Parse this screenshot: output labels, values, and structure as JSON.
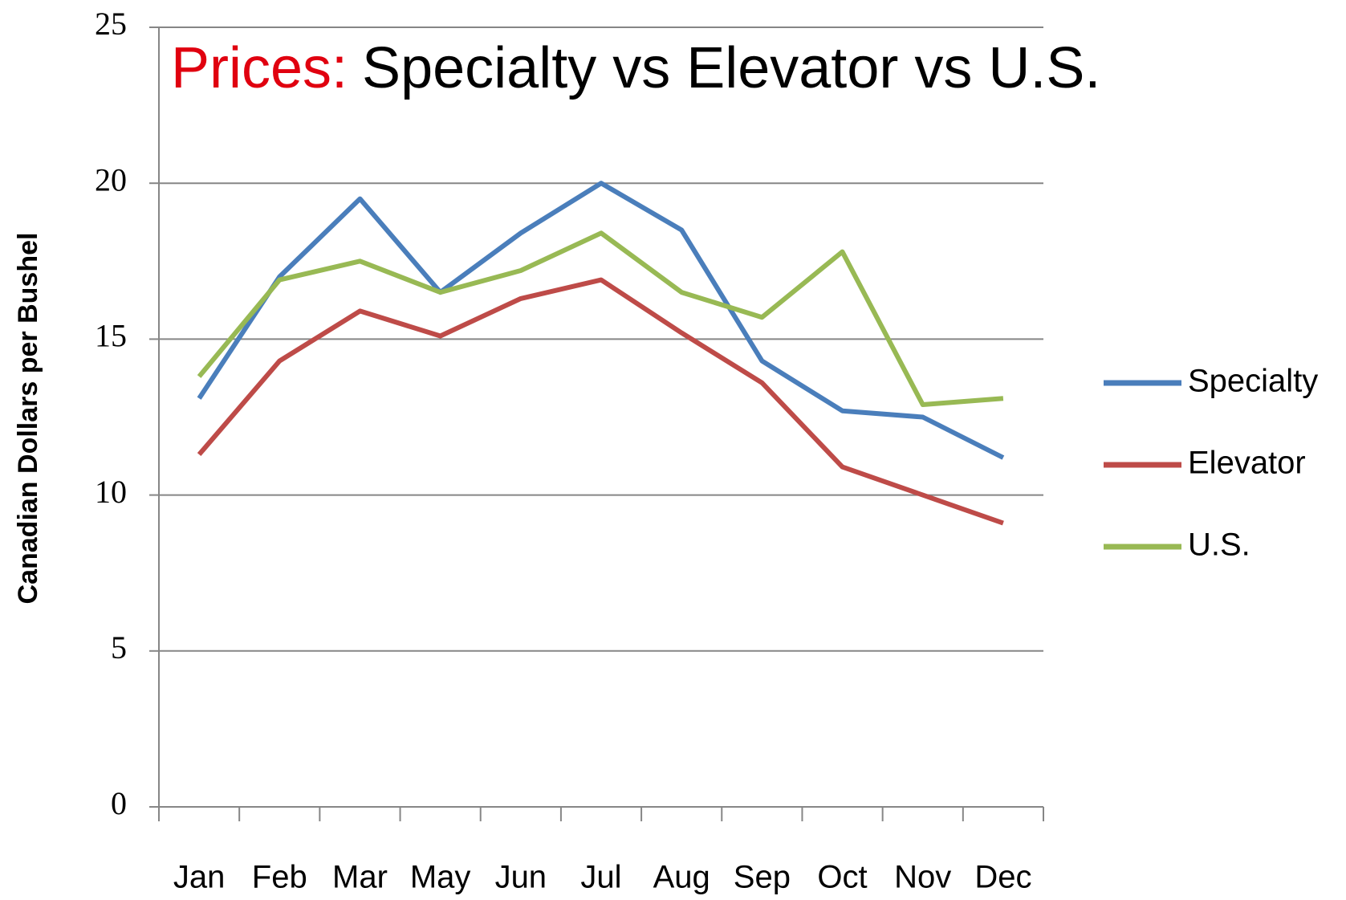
{
  "chart_data": {
    "type": "line",
    "title": [
      "Prices:",
      "Specialty vs Elevator vs U.S."
    ],
    "title_colors": [
      "#e0000f",
      "#000000"
    ],
    "y_label": "Canadian Dollars per Bushel",
    "categories": [
      "Jan",
      "Feb",
      "Mar",
      "May",
      "Jun",
      "Jul",
      "Aug",
      "Sep",
      "Oct",
      "Nov",
      "Dec"
    ],
    "series": [
      {
        "name": "Specialty",
        "color": "#4a7ebb",
        "values": [
          13.1,
          17.0,
          19.5,
          16.5,
          18.4,
          20.0,
          18.5,
          14.3,
          12.7,
          12.5,
          11.2
        ]
      },
      {
        "name": "Elevator",
        "color": "#be4b48",
        "values": [
          11.3,
          14.3,
          15.9,
          15.1,
          16.3,
          16.9,
          15.2,
          13.6,
          10.9,
          10.0,
          9.1
        ]
      },
      {
        "name": "U.S.",
        "color": "#98b954",
        "values": [
          13.8,
          16.9,
          17.5,
          16.5,
          17.2,
          18.4,
          16.5,
          15.7,
          17.8,
          12.9,
          13.1
        ]
      }
    ],
    "ylim": [
      0,
      25
    ],
    "yticks": [
      0,
      5,
      10,
      15,
      20,
      25
    ],
    "grid": true,
    "legend": "right"
  }
}
